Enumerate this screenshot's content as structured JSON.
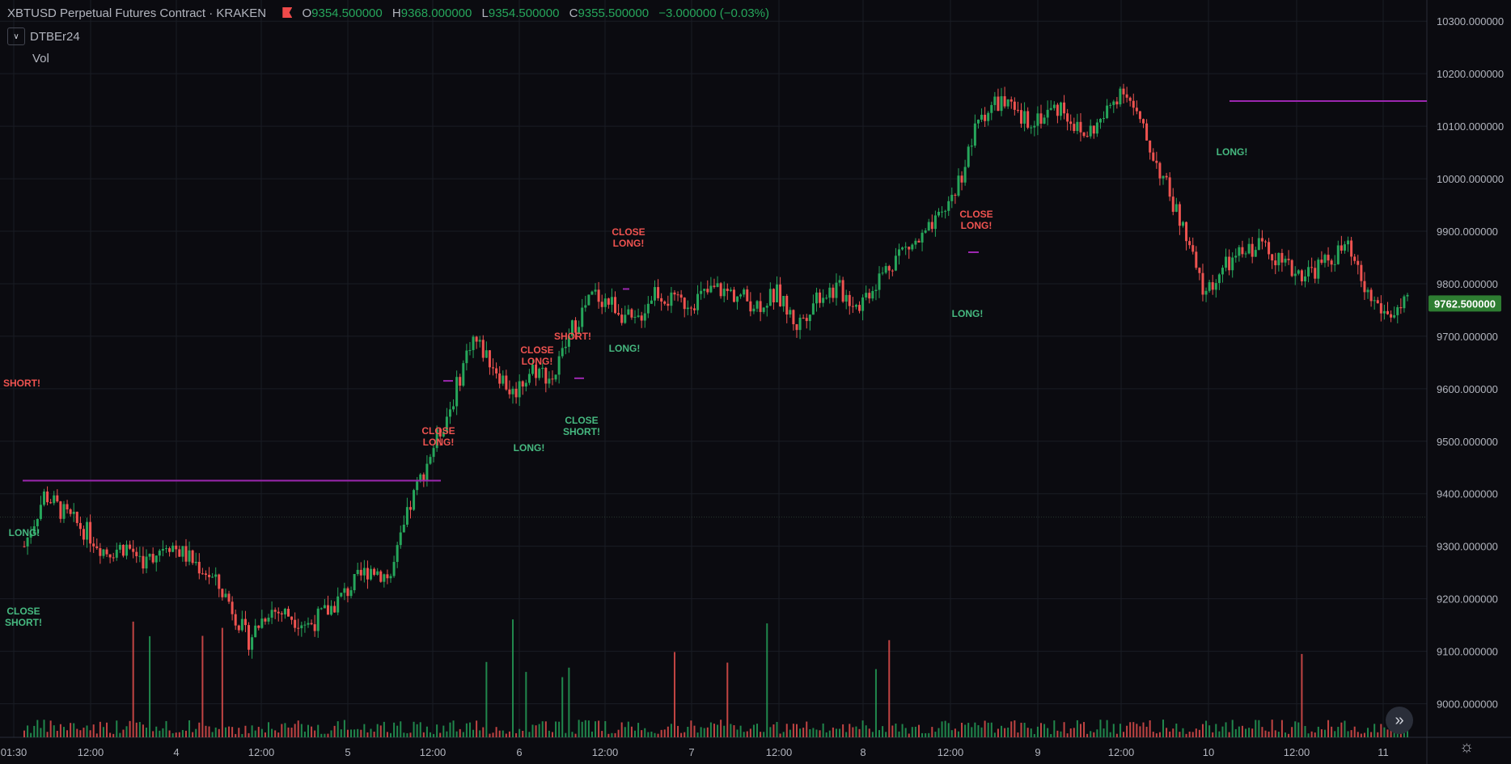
{
  "header": {
    "symbol": "XBTUSD Perpetual Futures Contract · KRAKEN",
    "open_label": "O",
    "open": "9354.500000",
    "high_label": "H",
    "high": "9368.000000",
    "low_label": "L",
    "low": "9354.500000",
    "close_label": "C",
    "close": "9355.500000",
    "change": "−3.000000 (−0.03%)"
  },
  "indicators": {
    "strategy_name": "DTBEr24",
    "volume_label": "Vol"
  },
  "colors": {
    "background": "#0b0b10",
    "up": "#26a65b",
    "down": "#ef5350",
    "position_line": "#9c27b0",
    "price_tag": "#2e7d32",
    "long_text": "#46b980",
    "short_text": "#ef5350",
    "grid": "#1a1c24"
  },
  "chart_data": {
    "type": "line",
    "y_ticks": [
      "10300.000000",
      "10200.000000",
      "10100.000000",
      "10000.000000",
      "9900.000000",
      "9800.000000",
      "9700.000000",
      "9600.000000",
      "9500.000000",
      "9400.000000",
      "9300.000000",
      "9200.000000",
      "9100.000000",
      "9000.000000"
    ],
    "x_ticks": [
      "01:30",
      "12:00",
      "4",
      "12:00",
      "5",
      "12:00",
      "6",
      "12:00",
      "7",
      "12:00",
      "8",
      "12:00",
      "9",
      "12:00",
      "10",
      "12:00",
      "11"
    ],
    "ylim": [
      8970,
      10325
    ],
    "current_price": "9762.500000",
    "series": [
      {
        "x": [
          0,
          0.25,
          0.5,
          0.75,
          1.0,
          1.25,
          1.5,
          1.75,
          2.0,
          2.25,
          2.5,
          2.75,
          3.0,
          3.25,
          3.5,
          3.75,
          4.0,
          4.25,
          4.5,
          4.75,
          5.0,
          5.25,
          5.5,
          5.75,
          6.0,
          6.25,
          6.5,
          6.75,
          7.0,
          7.25,
          7.5,
          7.75,
          8.0,
          8.25,
          8.5,
          8.75,
          9.0,
          9.25,
          9.5,
          9.75,
          10.0,
          10.25,
          10.5,
          10.75,
          11.0,
          11.25,
          11.5,
          11.75,
          12.0,
          12.25,
          12.5,
          12.75,
          13.0,
          13.25,
          13.5,
          13.75,
          14.0,
          14.25,
          14.5,
          14.75,
          15.0,
          15.25,
          15.5,
          15.75,
          16.0,
          16.25,
          16.5,
          16.75,
          17.0
        ],
        "values": [
          9300,
          9400,
          9360,
          9330,
          9290,
          9300,
          9270,
          9310,
          9280,
          9250,
          9200,
          9120,
          9180,
          9170,
          9150,
          9180,
          9220,
          9260,
          9240,
          9380,
          9480,
          9570,
          9700,
          9650,
          9590,
          9640,
          9620,
          9720,
          9780,
          9760,
          9720,
          9790,
          9760,
          9770,
          9790,
          9780,
          9760,
          9780,
          9720,
          9780,
          9790,
          9760,
          9810,
          9860,
          9880,
          9920,
          10000,
          10120,
          10150,
          10110,
          10120,
          10140,
          10080,
          10110,
          10180,
          10090,
          10000,
          9900,
          9780,
          9830,
          9860,
          9880,
          9830,
          9820,
          9840,
          9870,
          9780,
          9740,
          9760
        ]
      }
    ],
    "markers": [
      {
        "text": "SHORT!",
        "kind": "short"
      },
      {
        "text": "LONG!",
        "kind": "long"
      },
      {
        "text": "CLOSE SHORT!",
        "kind": "long"
      },
      {
        "text": "CLOSE LONG!",
        "kind": "short"
      },
      {
        "text": "LONG!",
        "kind": "long"
      },
      {
        "text": "CLOSE LONG!",
        "kind": "short"
      },
      {
        "text": "SHORT!",
        "kind": "short"
      },
      {
        "text": "CLOSE SHORT!",
        "kind": "long"
      },
      {
        "text": "LONG!",
        "kind": "long"
      },
      {
        "text": "CLOSE LONG!",
        "kind": "short"
      },
      {
        "text": "CLOSE LONG!",
        "kind": "short"
      },
      {
        "text": "LONG!",
        "kind": "long"
      },
      {
        "text": "LONG!",
        "kind": "long"
      }
    ]
  }
}
